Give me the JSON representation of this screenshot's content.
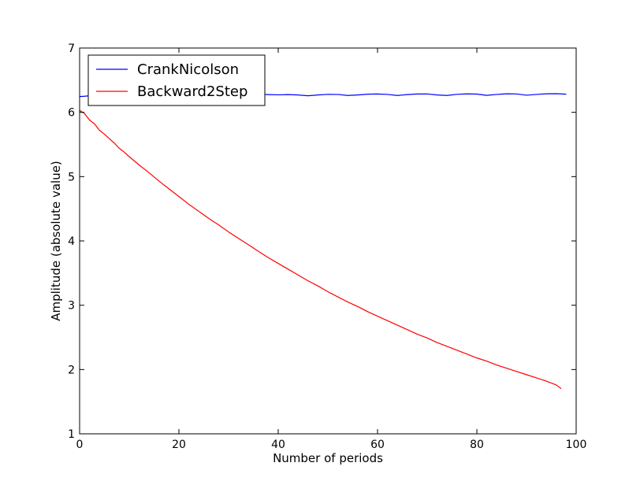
{
  "chart_data": {
    "type": "line",
    "title": "",
    "xlabel": "Number of periods",
    "ylabel": "Amplitude (absolute value)",
    "xlim": [
      0,
      100
    ],
    "ylim": [
      1,
      7
    ],
    "xticks": [
      "0",
      "20",
      "40",
      "60",
      "80",
      "100"
    ],
    "yticks": [
      "1",
      "2",
      "3",
      "4",
      "5",
      "6",
      "7"
    ],
    "grid": false,
    "legend": {
      "placement": "top-left"
    },
    "series": [
      {
        "name": "CrankNicolson",
        "color": "#0000ff",
        "x": [
          0,
          1,
          2,
          3,
          4,
          5,
          6,
          7,
          8,
          9,
          10,
          12,
          14,
          16,
          18,
          20,
          22,
          24,
          26,
          28,
          30,
          32,
          34,
          36,
          38,
          40,
          42,
          44,
          46,
          48,
          50,
          52,
          54,
          56,
          58,
          60,
          62,
          64,
          66,
          68,
          70,
          72,
          74,
          76,
          78,
          80,
          82,
          84,
          86,
          88,
          90,
          92,
          94,
          96,
          98
        ],
        "y": [
          6.245,
          6.25,
          6.258,
          6.262,
          6.26,
          6.25,
          6.255,
          6.264,
          6.27,
          6.268,
          6.258,
          6.262,
          6.272,
          6.275,
          6.27,
          6.258,
          6.262,
          6.272,
          6.278,
          6.274,
          6.262,
          6.266,
          6.276,
          6.28,
          6.276,
          6.272,
          6.276,
          6.27,
          6.258,
          6.27,
          6.28,
          6.278,
          6.262,
          6.27,
          6.282,
          6.285,
          6.278,
          6.262,
          6.276,
          6.285,
          6.286,
          6.27,
          6.262,
          6.28,
          6.287,
          6.284,
          6.264,
          6.278,
          6.288,
          6.286,
          6.266,
          6.278,
          6.288,
          6.29,
          6.282
        ]
      },
      {
        "name": "Backward2Step",
        "color": "#ff0000",
        "x": [
          0,
          1,
          2,
          3,
          4,
          5,
          6,
          7,
          8,
          9,
          10,
          12,
          14,
          16,
          18,
          20,
          22,
          24,
          26,
          28,
          30,
          32,
          34,
          36,
          38,
          40,
          42,
          44,
          46,
          48,
          50,
          52,
          54,
          56,
          58,
          60,
          62,
          64,
          66,
          68,
          70,
          72,
          74,
          76,
          78,
          80,
          82,
          84,
          86,
          88,
          90,
          92,
          94,
          96,
          97
        ],
        "y": [
          6.03,
          5.98,
          5.88,
          5.82,
          5.72,
          5.66,
          5.59,
          5.52,
          5.44,
          5.38,
          5.31,
          5.18,
          5.06,
          4.93,
          4.81,
          4.69,
          4.57,
          4.46,
          4.35,
          4.25,
          4.14,
          4.04,
          3.94,
          3.84,
          3.74,
          3.65,
          3.56,
          3.47,
          3.38,
          3.3,
          3.21,
          3.13,
          3.05,
          2.98,
          2.9,
          2.83,
          2.76,
          2.69,
          2.62,
          2.55,
          2.49,
          2.42,
          2.36,
          2.3,
          2.24,
          2.18,
          2.13,
          2.07,
          2.02,
          1.97,
          1.92,
          1.87,
          1.82,
          1.76,
          1.7
        ]
      }
    ]
  }
}
